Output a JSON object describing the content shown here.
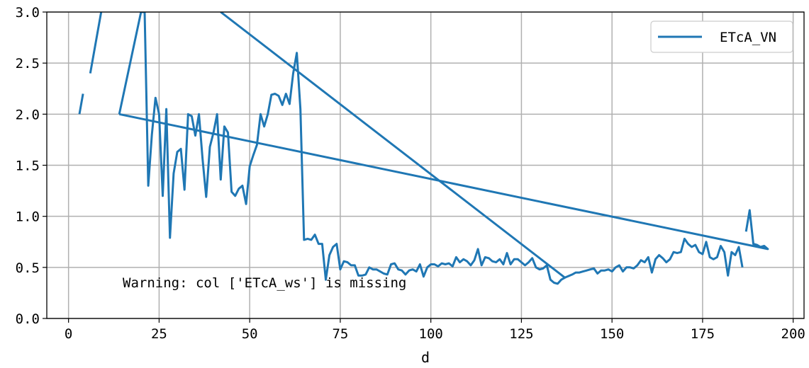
{
  "chart_data": {
    "type": "line",
    "xlabel": "d",
    "ylabel": "",
    "xlim": [
      -6,
      203
    ],
    "ylim": [
      0.0,
      3.0
    ],
    "xticks": [
      0,
      25,
      50,
      75,
      100,
      125,
      150,
      175,
      200
    ],
    "yticks": [
      0.0,
      0.5,
      1.0,
      1.5,
      2.0,
      2.5,
      3.0
    ],
    "ytick_labels": [
      "0.0",
      "0.5",
      "1.0",
      "1.5",
      "2.0",
      "2.5",
      "3.0"
    ],
    "grid": true,
    "legend_position": "top-right",
    "annotation": "Warning: col ['ETcA_ws'] is missing",
    "colors": {
      "series": "#1f77b4",
      "grid": "#b0b0b0"
    },
    "series": [
      {
        "name": "ETcA_VN",
        "segments": [
          [
            [
              3,
              2.0
            ],
            [
              4,
              2.2
            ]
          ],
          [
            [
              6,
              2.4
            ],
            [
              9,
              3.0
            ]
          ],
          [
            [
              14,
              2.0
            ],
            [
              20,
              3.0
            ],
            [
              21,
              3.0
            ],
            [
              22,
              1.3
            ],
            [
              23,
              1.8
            ],
            [
              24,
              2.16
            ],
            [
              25,
              2.0
            ],
            [
              26,
              1.2
            ],
            [
              27,
              2.05
            ],
            [
              28,
              0.79
            ],
            [
              29,
              1.42
            ],
            [
              30,
              1.63
            ],
            [
              31,
              1.66
            ],
            [
              32,
              1.26
            ],
            [
              33,
              2.0
            ],
            [
              34,
              1.98
            ],
            [
              35,
              1.79
            ],
            [
              36,
              2.0
            ],
            [
              37,
              1.56
            ],
            [
              38,
              1.19
            ],
            [
              39,
              1.68
            ],
            [
              40,
              1.82
            ],
            [
              41,
              2.0
            ],
            [
              42,
              1.36
            ],
            [
              43,
              1.88
            ],
            [
              44,
              1.82
            ],
            [
              45,
              1.24
            ],
            [
              46,
              1.2
            ],
            [
              47,
              1.27
            ],
            [
              48,
              1.3
            ],
            [
              49,
              1.12
            ],
            [
              50,
              1.49
            ],
            [
              51,
              1.6
            ],
            [
              52,
              1.7
            ],
            [
              53,
              2.0
            ],
            [
              54,
              1.88
            ],
            [
              55,
              2.0
            ],
            [
              56,
              2.19
            ],
            [
              57,
              2.2
            ],
            [
              58,
              2.18
            ],
            [
              59,
              2.09
            ],
            [
              60,
              2.2
            ],
            [
              61,
              2.1
            ],
            [
              62,
              2.4
            ],
            [
              63,
              2.6
            ],
            [
              64,
              2.05
            ],
            [
              65,
              0.77
            ],
            [
              66,
              0.78
            ],
            [
              67,
              0.77
            ],
            [
              68,
              0.82
            ],
            [
              69,
              0.73
            ],
            [
              70,
              0.73
            ],
            [
              71,
              0.38
            ],
            [
              72,
              0.62
            ],
            [
              73,
              0.7
            ],
            [
              74,
              0.73
            ],
            [
              75,
              0.48
            ],
            [
              76,
              0.56
            ],
            [
              77,
              0.55
            ],
            [
              78,
              0.52
            ],
            [
              79,
              0.52
            ],
            [
              80,
              0.42
            ],
            [
              81,
              0.42
            ],
            [
              82,
              0.43
            ],
            [
              83,
              0.5
            ],
            [
              84,
              0.48
            ],
            [
              85,
              0.48
            ],
            [
              86,
              0.46
            ],
            [
              87,
              0.44
            ],
            [
              88,
              0.43
            ],
            [
              89,
              0.53
            ],
            [
              90,
              0.54
            ],
            [
              91,
              0.48
            ],
            [
              92,
              0.47
            ],
            [
              93,
              0.43
            ],
            [
              94,
              0.47
            ],
            [
              95,
              0.48
            ],
            [
              96,
              0.46
            ],
            [
              97,
              0.53
            ],
            [
              98,
              0.41
            ],
            [
              99,
              0.5
            ],
            [
              100,
              0.53
            ],
            [
              101,
              0.53
            ],
            [
              102,
              0.51
            ],
            [
              103,
              0.54
            ],
            [
              104,
              0.53
            ],
            [
              105,
              0.54
            ],
            [
              106,
              0.51
            ],
            [
              107,
              0.6
            ],
            [
              108,
              0.55
            ],
            [
              109,
              0.58
            ],
            [
              110,
              0.56
            ],
            [
              111,
              0.52
            ],
            [
              112,
              0.57
            ],
            [
              113,
              0.68
            ],
            [
              114,
              0.52
            ],
            [
              115,
              0.6
            ],
            [
              116,
              0.59
            ],
            [
              117,
              0.56
            ],
            [
              118,
              0.55
            ],
            [
              119,
              0.58
            ],
            [
              120,
              0.53
            ],
            [
              121,
              0.64
            ],
            [
              122,
              0.53
            ],
            [
              123,
              0.58
            ],
            [
              124,
              0.58
            ],
            [
              125,
              0.55
            ],
            [
              126,
              0.52
            ],
            [
              127,
              0.55
            ],
            [
              128,
              0.59
            ],
            [
              129,
              0.5
            ],
            [
              130,
              0.48
            ],
            [
              131,
              0.49
            ],
            [
              132,
              0.52
            ],
            [
              133,
              0.38
            ],
            [
              134,
              0.35
            ],
            [
              135,
              0.34
            ],
            [
              136,
              0.38
            ],
            [
              137,
              0.4
            ],
            [
              42,
              3.0
            ]
          ],
          [
            [
              137,
              0.4
            ],
            [
              139,
              0.43
            ],
            [
              140,
              0.45
            ],
            [
              141,
              0.45
            ],
            [
              142,
              0.46
            ],
            [
              143,
              0.47
            ],
            [
              144,
              0.48
            ],
            [
              145,
              0.49
            ],
            [
              146,
              0.44
            ],
            [
              147,
              0.47
            ],
            [
              148,
              0.47
            ],
            [
              149,
              0.48
            ],
            [
              150,
              0.46
            ],
            [
              151,
              0.5
            ],
            [
              152,
              0.52
            ],
            [
              153,
              0.46
            ],
            [
              154,
              0.5
            ],
            [
              155,
              0.5
            ],
            [
              156,
              0.49
            ],
            [
              157,
              0.52
            ],
            [
              158,
              0.57
            ],
            [
              159,
              0.55
            ],
            [
              160,
              0.6
            ],
            [
              161,
              0.45
            ],
            [
              162,
              0.58
            ],
            [
              163,
              0.62
            ],
            [
              164,
              0.59
            ],
            [
              165,
              0.55
            ],
            [
              166,
              0.58
            ],
            [
              167,
              0.65
            ],
            [
              168,
              0.64
            ],
            [
              169,
              0.65
            ],
            [
              170,
              0.78
            ],
            [
              171,
              0.73
            ],
            [
              172,
              0.7
            ],
            [
              173,
              0.72
            ],
            [
              174,
              0.65
            ],
            [
              175,
              0.63
            ],
            [
              176,
              0.75
            ],
            [
              177,
              0.6
            ],
            [
              178,
              0.58
            ],
            [
              179,
              0.6
            ],
            [
              180,
              0.71
            ],
            [
              181,
              0.65
            ],
            [
              182,
              0.42
            ],
            [
              183,
              0.65
            ],
            [
              184,
              0.62
            ],
            [
              185,
              0.7
            ],
            [
              186,
              0.5
            ]
          ],
          [
            [
              187,
              0.85
            ],
            [
              188,
              1.06
            ],
            [
              189,
              0.73
            ],
            [
              190,
              0.72
            ],
            [
              191,
              0.7
            ],
            [
              192,
              0.71
            ],
            [
              193,
              0.68
            ],
            [
              14,
              2.0
            ]
          ]
        ]
      }
    ]
  }
}
